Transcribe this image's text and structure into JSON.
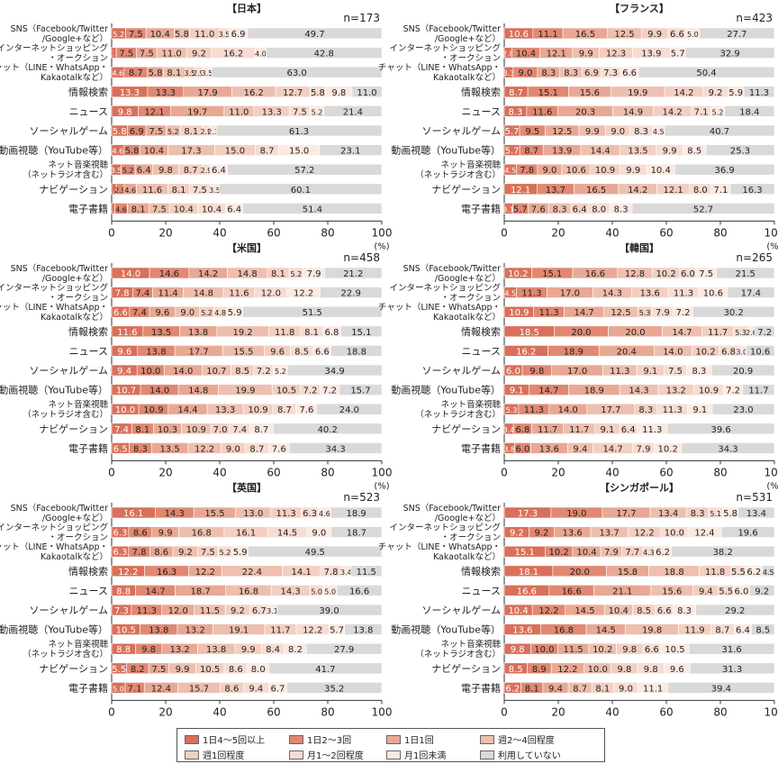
{
  "categories": [
    "SNS（Facebook/Twitter/Google+など）",
    "インターネットショッピング・オークション",
    "チャット（LINE・WhatsApp・Kakaotalkなど）",
    "情報検索",
    "ニュース",
    "ソーシャルゲーム",
    "動画視聴（YouTube等）",
    "ネット音楽視聴（ネットラジオ含む）",
    "ナビゲーション",
    "電子書籍"
  ],
  "category_lines": [
    [
      "SNS（Facebook/Twitter",
      "/Google+など）"
    ],
    [
      "インターネットショッピング",
      "・オークション"
    ],
    [
      "チャット（LINE・WhatsApp・",
      "Kakaotalkなど）"
    ],
    [
      "情報検索"
    ],
    [
      "ニュース"
    ],
    [
      "ソーシャルゲーム"
    ],
    [
      "動画視聴（YouTube等）"
    ],
    [
      "ネット音楽視聴",
      "（ネットラジオ含む）"
    ],
    [
      "ナビゲーション"
    ],
    [
      "電子書籍"
    ]
  ],
  "legend": [
    "1日4～5回以上",
    "1日2～3回",
    "1日1回",
    "週2～4回程度",
    "週1回程度",
    "月1～2回程度",
    "月1回未満",
    "利用していない"
  ],
  "colors": [
    "#d9705a",
    "#e08872",
    "#e9a893",
    "#eebfae",
    "#f3cfc2",
    "#f6dcd2",
    "#fbe9e2",
    "#d9d9d9"
  ],
  "axis": {
    "ticks": [
      "0",
      "20",
      "40",
      "60",
      "80",
      "100"
    ],
    "unit": "(%)"
  },
  "chart_data": [
    {
      "type": "bar",
      "title": "【日本】",
      "n_label": "n=173",
      "categories": [
        "SNS（Facebook/Twitter/Google+など）",
        "インターネットショッピング・オークション",
        "チャット（LINE・WhatsApp・Kakaotalkなど）",
        "情報検索",
        "ニュース",
        "ソーシャルゲーム",
        "動画視聴（YouTube等）",
        "ネット音楽視聴（ネットラジオ含む）",
        "ナビゲーション",
        "電子書籍"
      ],
      "xlim": [
        0,
        100
      ],
      "values": [
        [
          5.2,
          7.5,
          10.4,
          5.8,
          11.0,
          3.5,
          6.9,
          49.7
        ],
        [
          1.7,
          7.5,
          7.5,
          11.0,
          9.2,
          16.2,
          4.0,
          42.8
        ],
        [
          4.6,
          8.7,
          5.8,
          8.1,
          3.5,
          2.9,
          3.5,
          63.0
        ],
        [
          13.3,
          13.3,
          17.9,
          16.2,
          12.7,
          5.8,
          9.8,
          11.0
        ],
        [
          9.8,
          12.1,
          19.7,
          11.0,
          13.3,
          7.5,
          5.2,
          21.4
        ],
        [
          5.8,
          6.9,
          7.5,
          5.2,
          8.1,
          2.9,
          2.3,
          61.3
        ],
        [
          4.6,
          5.8,
          10.4,
          17.3,
          15.0,
          8.7,
          15.0,
          23.1
        ],
        [
          3.5,
          5.2,
          6.4,
          9.8,
          8.7,
          2.9,
          6.4,
          57.2
        ],
        [
          1.7,
          2.9,
          4.6,
          11.6,
          8.1,
          7.5,
          3.5,
          60.1
        ],
        [
          1.2,
          4.6,
          8.1,
          7.5,
          10.4,
          10.4,
          6.4,
          51.4
        ]
      ]
    },
    {
      "type": "bar",
      "title": "【フランス】",
      "n_label": "n=423",
      "categories": [
        "SNS（Facebook/Twitter/Google+など）",
        "インターネットショッピング・オークション",
        "チャット（LINE・WhatsApp・Kakaotalkなど）",
        "情報検索",
        "ニュース",
        "ソーシャルゲーム",
        "動画視聴（YouTube等）",
        "ネット音楽視聴（ネットラジオ含む）",
        "ナビゲーション",
        "電子書籍"
      ],
      "xlim": [
        0,
        100
      ],
      "values": [
        [
          10.6,
          11.1,
          16.5,
          12.5,
          9.9,
          6.6,
          5.0,
          27.7
        ],
        [
          2.8,
          10.4,
          12.1,
          9.9,
          12.3,
          13.9,
          5.7,
          32.9
        ],
        [
          3.3,
          9.0,
          8.3,
          8.3,
          6.9,
          7.3,
          6.6,
          50.4
        ],
        [
          8.7,
          15.1,
          15.6,
          19.9,
          14.2,
          9.2,
          5.9,
          11.3
        ],
        [
          8.3,
          11.6,
          20.3,
          14.9,
          14.2,
          7.1,
          5.2,
          18.4
        ],
        [
          5.7,
          9.5,
          12.5,
          9.9,
          9.0,
          8.3,
          4.5,
          40.7
        ],
        [
          5.7,
          8.7,
          13.9,
          14.4,
          13.5,
          9.9,
          8.5,
          25.3
        ],
        [
          4.5,
          7.8,
          9.0,
          10.6,
          10.9,
          9.9,
          10.4,
          36.9
        ],
        [
          12.1,
          13.7,
          16.5,
          14.2,
          12.1,
          8.0,
          7.1,
          16.3
        ],
        [
          3.1,
          5.7,
          7.6,
          8.3,
          6.4,
          8.0,
          8.3,
          52.7
        ]
      ]
    },
    {
      "type": "bar",
      "title": "【米国】",
      "n_label": "n=458",
      "categories": [
        "SNS（Facebook/Twitter/Google+など）",
        "インターネットショッピング・オークション",
        "チャット（LINE・WhatsApp・Kakaotalkなど）",
        "情報検索",
        "ニュース",
        "ソーシャルゲーム",
        "動画視聴（YouTube等）",
        "ネット音楽視聴（ネットラジオ含む）",
        "ナビゲーション",
        "電子書籍"
      ],
      "xlim": [
        0,
        100
      ],
      "values": [
        [
          14.0,
          14.6,
          14.2,
          14.8,
          8.1,
          5.2,
          7.9,
          21.2
        ],
        [
          7.8,
          7.4,
          11.4,
          14.8,
          11.6,
          12.0,
          12.2,
          22.9
        ],
        [
          6.6,
          7.4,
          9.6,
          9.0,
          5.2,
          4.8,
          5.9,
          51.5
        ],
        [
          11.6,
          13.5,
          13.8,
          19.2,
          11.8,
          8.1,
          6.8,
          15.1
        ],
        [
          9.6,
          13.8,
          17.7,
          15.5,
          9.6,
          8.5,
          6.6,
          18.8
        ],
        [
          9.4,
          10.0,
          14.0,
          10.7,
          8.5,
          7.2,
          5.2,
          34.9
        ],
        [
          10.7,
          14.0,
          14.8,
          19.9,
          10.5,
          7.2,
          7.2,
          15.7
        ],
        [
          10.0,
          10.9,
          14.4,
          13.3,
          10.9,
          8.7,
          7.6,
          24.0
        ],
        [
          7.4,
          8.1,
          10.3,
          10.9,
          7.0,
          7.4,
          8.7,
          40.2
        ],
        [
          6.5,
          8.3,
          13.5,
          12.2,
          9.0,
          8.7,
          7.6,
          34.3
        ]
      ]
    },
    {
      "type": "bar",
      "title": "【韓国】",
      "n_label": "n=265",
      "categories": [
        "SNS（Facebook/Twitter/Google+など）",
        "インターネットショッピング・オークション",
        "チャット（LINE・WhatsApp・Kakaotalkなど）",
        "情報検索",
        "ニュース",
        "ソーシャルゲーム",
        "動画視聴（YouTube等）",
        "ネット音楽視聴（ネットラジオ含む）",
        "ナビゲーション",
        "電子書籍"
      ],
      "xlim": [
        0,
        100
      ],
      "values": [
        [
          10.2,
          15.1,
          16.6,
          12.8,
          10.2,
          6.0,
          7.5,
          21.5
        ],
        [
          4.5,
          11.3,
          17.0,
          14.3,
          13.6,
          11.3,
          10.6,
          17.4
        ],
        [
          10.9,
          11.3,
          14.7,
          12.5,
          5.3,
          7.9,
          7.2,
          30.2
        ],
        [
          18.5,
          20.0,
          20.0,
          14.7,
          11.7,
          5.3,
          2.6,
          7.2
        ],
        [
          16.2,
          18.9,
          20.4,
          14.0,
          10.2,
          6.8,
          3.0,
          10.6
        ],
        [
          6.0,
          9.8,
          17.0,
          11.3,
          9.1,
          7.5,
          8.3,
          20.9
        ],
        [
          9.1,
          14.7,
          18.9,
          14.3,
          13.2,
          10.9,
          7.2,
          11.7
        ],
        [
          5.3,
          11.3,
          14.0,
          17.7,
          8.3,
          11.3,
          9.1,
          23.0
        ],
        [
          3.4,
          6.8,
          11.7,
          11.7,
          9.1,
          6.4,
          11.3,
          39.6
        ],
        [
          3.8,
          6.0,
          13.6,
          9.4,
          14.7,
          7.9,
          10.2,
          34.3
        ]
      ]
    },
    {
      "type": "bar",
      "title": "【英国】",
      "n_label": "n=523",
      "categories": [
        "SNS（Facebook/Twitter/Google+など）",
        "インターネットショッピング・オークション",
        "チャット（LINE・WhatsApp・Kakaotalkなど）",
        "情報検索",
        "ニュース",
        "ソーシャルゲーム",
        "動画視聴（YouTube等）",
        "ネット音楽視聴（ネットラジオ含む）",
        "ナビゲーション",
        "電子書籍"
      ],
      "xlim": [
        0,
        100
      ],
      "values": [
        [
          16.1,
          14.3,
          15.5,
          13.0,
          11.3,
          6.3,
          4.6,
          18.9
        ],
        [
          6.3,
          8.6,
          9.9,
          16.8,
          16.1,
          14.5,
          9.0,
          18.7
        ],
        [
          6.3,
          7.8,
          8.6,
          9.2,
          7.5,
          5.2,
          5.9,
          49.5
        ],
        [
          12.2,
          16.3,
          12.2,
          22.4,
          14.1,
          7.8,
          3.4,
          11.5
        ],
        [
          8.8,
          14.7,
          18.7,
          16.8,
          14.3,
          5.0,
          5.0,
          16.6
        ],
        [
          7.3,
          11.3,
          12.0,
          11.5,
          9.2,
          6.7,
          3.1,
          39.0
        ],
        [
          10.5,
          13.8,
          13.2,
          19.1,
          11.7,
          12.2,
          5.7,
          13.8
        ],
        [
          8.8,
          9.8,
          13.2,
          13.8,
          9.9,
          8.4,
          8.2,
          27.9
        ],
        [
          5.5,
          8.2,
          7.5,
          9.9,
          10.5,
          8.6,
          8.0,
          41.7
        ],
        [
          5.0,
          7.1,
          12.4,
          15.7,
          8.6,
          9.4,
          6.7,
          35.2
        ]
      ]
    },
    {
      "type": "bar",
      "title": "【シンガポール】",
      "n_label": "n=531",
      "categories": [
        "SNS（Facebook/Twitter/Google+など）",
        "インターネットショッピング・オークション",
        "チャット（LINE・WhatsApp・Kakaotalkなど）",
        "情報検索",
        "ニュース",
        "ソーシャルゲーム",
        "動画視聴（YouTube等）",
        "ネット音楽視聴（ネットラジオ含む）",
        "ナビゲーション",
        "電子書籍"
      ],
      "xlim": [
        0,
        100
      ],
      "values": [
        [
          17.3,
          19.0,
          17.7,
          13.4,
          8.3,
          5.1,
          5.8,
          13.4
        ],
        [
          9.2,
          9.2,
          13.6,
          13.7,
          12.2,
          10.0,
          12.4,
          19.6
        ],
        [
          15.1,
          10.2,
          10.4,
          7.9,
          7.7,
          4.3,
          6.2,
          38.2
        ],
        [
          18.1,
          20.0,
          15.8,
          18.8,
          11.8,
          5.5,
          6.2,
          4.5
        ],
        [
          16.6,
          16.6,
          21.1,
          15.6,
          9.4,
          5.5,
          6.0,
          9.2
        ],
        [
          10.4,
          12.2,
          14.5,
          10.4,
          8.5,
          6.6,
          8.3,
          29.2
        ],
        [
          13.6,
          16.8,
          14.5,
          19.8,
          11.9,
          8.7,
          6.4,
          8.5
        ],
        [
          9.8,
          10.0,
          11.5,
          10.2,
          9.8,
          6.6,
          10.5,
          31.6
        ],
        [
          8.5,
          8.9,
          12.2,
          10.0,
          9.8,
          9.8,
          9.6,
          31.3
        ],
        [
          6.2,
          8.1,
          9.4,
          8.7,
          8.1,
          9.0,
          11.1,
          39.4
        ]
      ]
    }
  ]
}
